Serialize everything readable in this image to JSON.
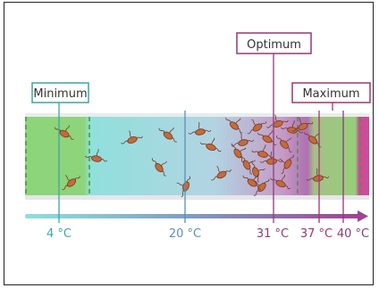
{
  "labels": {
    "minimum": "Minimum",
    "optimum": "Optimum",
    "maximum": "Maximum"
  },
  "axis_ticks": {
    "t4": "4 °C",
    "t20": "20 °C",
    "t31": "31 °C",
    "t37": "37 °C",
    "t40": "40 °C"
  },
  "colors": {
    "minimum": "#3aa6a6",
    "twenty": "#5a8fb8",
    "optimum": "#8e3a7a",
    "maximum_label": "#a4336f",
    "band_green": "#8ed47a",
    "band_cyan": "#8fe0dc",
    "band_purple": "#b86bb4",
    "band_edge": "#d04a98"
  }
}
